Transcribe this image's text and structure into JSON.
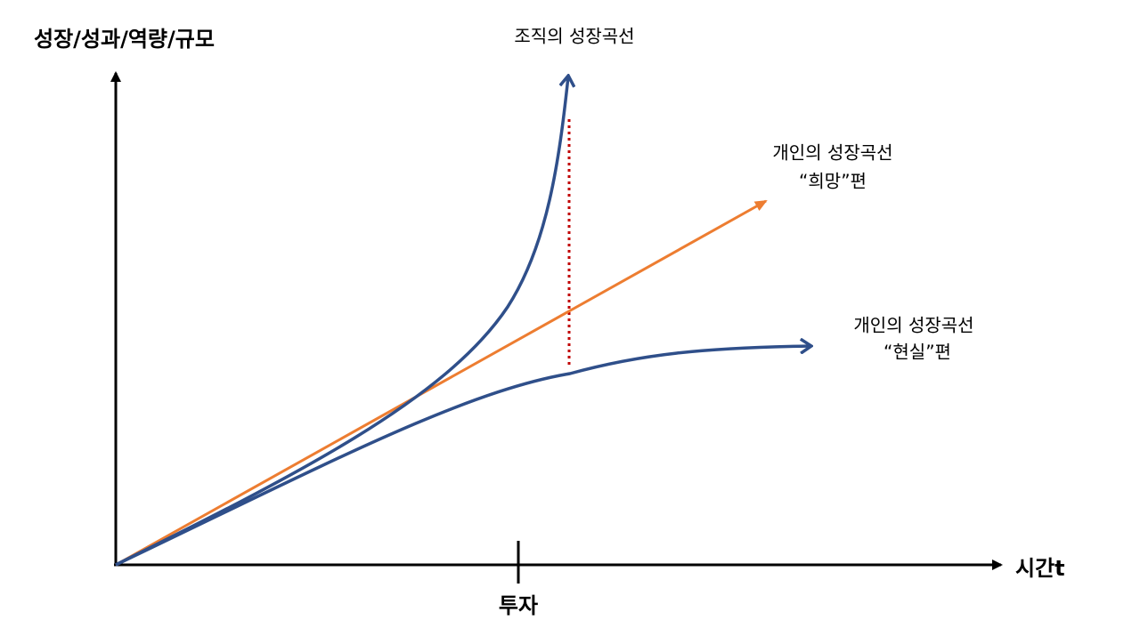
{
  "axes": {
    "y_label": "성장/성과/역량/규모",
    "x_label": "시간t",
    "x_marker": "투자"
  },
  "curves": [
    {
      "lines": [
        "조직의 성장곡선"
      ]
    },
    {
      "lines": [
        "개인의 성장곡선",
        "“희망”편"
      ]
    },
    {
      "lines": [
        "개인의 성장곡선",
        "“현실”편"
      ]
    }
  ]
}
